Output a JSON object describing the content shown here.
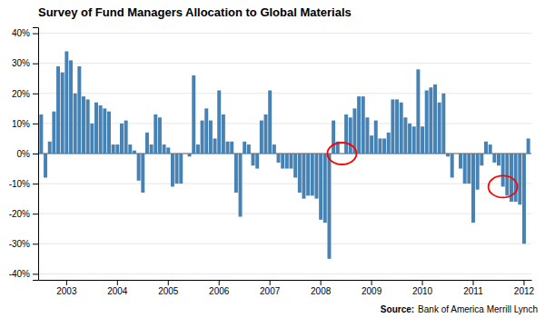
{
  "chart_data": {
    "type": "bar",
    "title": "Survey of Fund Managers Allocation to Global Materials",
    "categories": [
      null,
      null,
      null,
      null,
      null,
      null,
      "2003",
      null,
      null,
      null,
      null,
      null,
      null,
      null,
      null,
      null,
      null,
      null,
      "2004",
      null,
      null,
      null,
      null,
      null,
      null,
      null,
      null,
      null,
      null,
      null,
      "2005",
      null,
      null,
      null,
      null,
      null,
      null,
      null,
      null,
      null,
      null,
      null,
      "2006",
      null,
      null,
      null,
      null,
      null,
      null,
      null,
      null,
      null,
      null,
      null,
      "2007",
      null,
      null,
      null,
      null,
      null,
      null,
      null,
      null,
      null,
      null,
      null,
      "2008",
      null,
      null,
      null,
      null,
      null,
      null,
      null,
      null,
      null,
      null,
      null,
      "2009",
      null,
      null,
      null,
      null,
      null,
      null,
      null,
      null,
      null,
      null,
      null,
      "2010",
      null,
      null,
      null,
      null,
      null,
      null,
      null,
      null,
      null,
      null,
      null,
      "2011",
      null,
      null,
      null,
      null,
      null,
      null,
      null,
      null,
      null,
      null,
      null,
      "2012",
      null
    ],
    "values": [
      13,
      -8,
      4,
      14,
      29,
      27,
      34,
      31,
      20,
      29,
      19,
      18,
      10,
      17,
      16,
      15,
      14,
      3,
      3,
      10,
      11,
      3,
      1,
      -9,
      -13,
      7,
      3,
      13,
      12,
      3,
      2,
      -11,
      -10,
      -10,
      0,
      -1,
      26,
      3,
      11,
      15,
      11,
      5,
      21,
      13,
      4,
      4,
      -13,
      -21,
      4,
      3,
      -4,
      -5,
      11,
      13,
      21,
      3,
      -3,
      -5,
      -5,
      -5,
      -8,
      -13,
      -15,
      -14,
      -14,
      -15,
      -22,
      -23,
      -35,
      11,
      4,
      0,
      13,
      12,
      15,
      19,
      19,
      12,
      6,
      11,
      5,
      5,
      7,
      18,
      18,
      17,
      12,
      10,
      9,
      28,
      9,
      21,
      22,
      23,
      17,
      20,
      -1,
      -8,
      0,
      -5,
      -10,
      -10,
      -23,
      -12,
      -4,
      4,
      3,
      -3,
      -4,
      -11,
      -14,
      -16,
      -16,
      -17,
      -30,
      5
    ],
    "ylim": [
      -42,
      42
    ],
    "yticks": [
      {
        "value": -40,
        "label": "-40%"
      },
      {
        "value": -30,
        "label": "-30%"
      },
      {
        "value": -20,
        "label": "-20%"
      },
      {
        "value": -10,
        "label": "-10%"
      },
      {
        "value": 0,
        "label": "0%"
      },
      {
        "value": 10,
        "label": "10%"
      },
      {
        "value": 20,
        "label": "20%"
      },
      {
        "value": 30,
        "label": "30%"
      },
      {
        "value": 40,
        "label": "40%"
      }
    ],
    "grid": true,
    "highlight": [
      71,
      109
    ],
    "annotations": [
      "Source:",
      "Bank of America Merrill Lynch"
    ]
  }
}
